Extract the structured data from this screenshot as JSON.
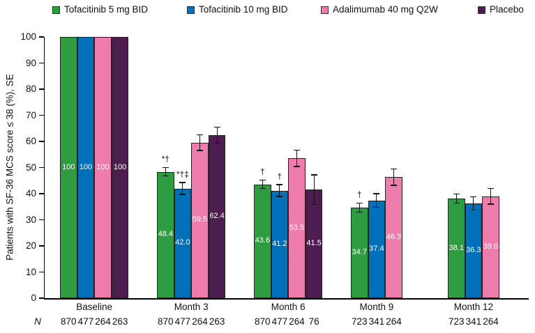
{
  "chart_data": {
    "type": "bar",
    "title": "",
    "ylabel": "Patients with SF-36 MCS score ≤ 38 (%), SE",
    "xlabel": "",
    "ylim": [
      0,
      100
    ],
    "yticks": [
      0,
      10,
      20,
      30,
      40,
      50,
      60,
      70,
      80,
      90,
      100
    ],
    "grid": false,
    "legend_position": "top",
    "error_bars": "SE",
    "categories": [
      "Baseline",
      "Month 3",
      "Month 6",
      "Month 9",
      "Month 12"
    ],
    "series": [
      {
        "name": "Tofacitinib 5 mg BID",
        "color": "#2e9c41",
        "values": [
          100,
          48.4,
          43.6,
          34.7,
          38.1
        ],
        "labels": [
          "100",
          "48.4",
          "43.6",
          "34.7",
          "38.1"
        ],
        "se": [
          0,
          1.7,
          1.7,
          1.8,
          1.8
        ],
        "annotations": [
          "",
          "*†",
          "†",
          "†",
          ""
        ]
      },
      {
        "name": "Tofacitinib 10 mg BID",
        "color": "#0071b9",
        "values": [
          100,
          42.0,
          41.2,
          37.4,
          36.3
        ],
        "labels": [
          "100",
          "42.0",
          "41.2",
          "37.4",
          "36.3"
        ],
        "se": [
          0,
          2.3,
          2.3,
          2.6,
          2.6
        ],
        "annotations": [
          "",
          "*†‡",
          "†",
          "",
          ""
        ]
      },
      {
        "name": "Adalimumab 40 mg Q2W",
        "color": "#ee7dab",
        "values": [
          100,
          59.5,
          53.5,
          46.3,
          39.0
        ],
        "labels": [
          "100",
          "59.5",
          "53.5",
          "46.3",
          "39.0"
        ],
        "se": [
          0,
          3.0,
          3.1,
          3.1,
          3.0
        ],
        "annotations": [
          "",
          "",
          "",
          "",
          ""
        ]
      },
      {
        "name": "Placebo",
        "color": "#4e1d4f",
        "values": [
          100,
          62.4,
          41.5,
          null,
          null
        ],
        "labels": [
          "100",
          "62.4",
          "41.5",
          "",
          ""
        ],
        "se": [
          0,
          3.0,
          5.7,
          null,
          null
        ],
        "annotations": [
          "",
          "",
          "",
          "",
          ""
        ]
      }
    ],
    "n_label": "N",
    "n_values": [
      [
        "870",
        "477",
        "264",
        "263"
      ],
      [
        "870",
        "477",
        "264",
        "263"
      ],
      [
        "870",
        "477",
        "264",
        "76"
      ],
      [
        "723",
        "341",
        "264"
      ],
      [
        "723",
        "341",
        "264"
      ]
    ]
  }
}
